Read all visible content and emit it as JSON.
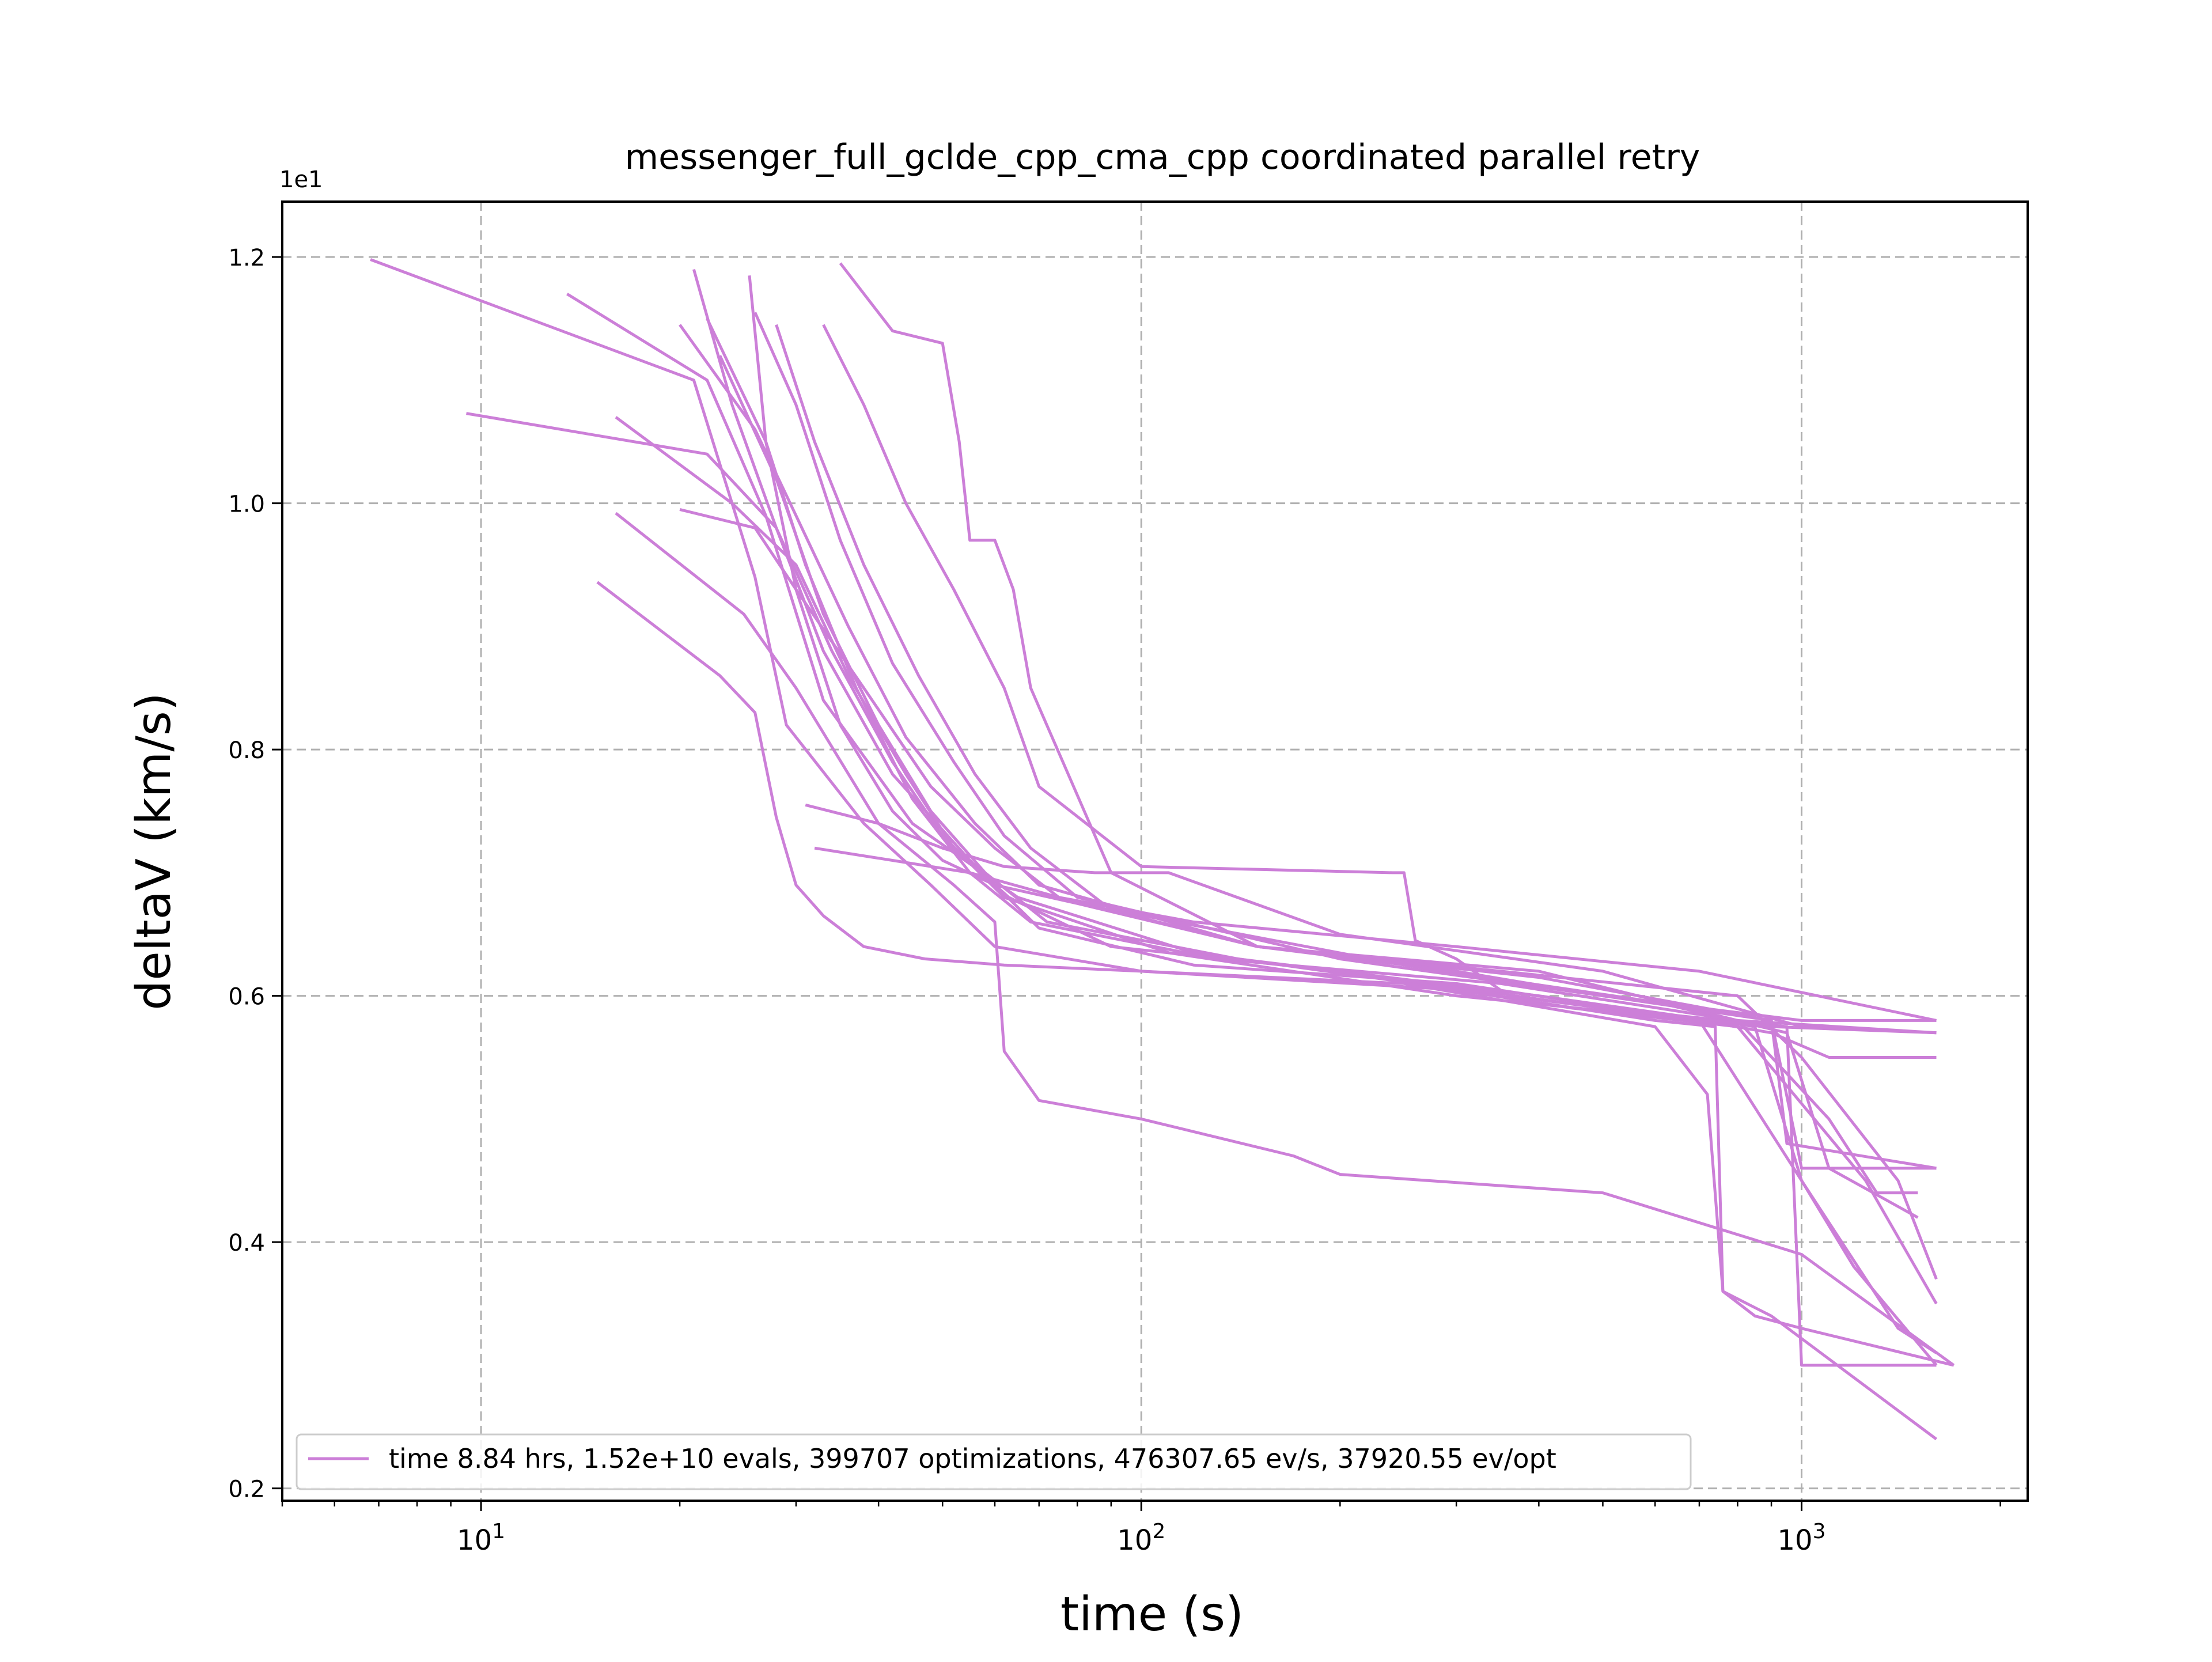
{
  "chart_data": {
    "type": "line",
    "title": "messenger_full_gclde_cpp_cma_cpp coordinated parallel retry",
    "xlabel": "time (s)",
    "ylabel": "deltaV (km/s)",
    "x_scale": "log",
    "xlim": [
      5,
      2200
    ],
    "ylim": [
      0.19,
      1.245
    ],
    "y_offset_text": "1e1",
    "x_ticks": [
      {
        "value": 10,
        "base": "10",
        "exp": "1"
      },
      {
        "value": 100,
        "base": "10",
        "exp": "2"
      },
      {
        "value": 1000,
        "base": "10",
        "exp": "3"
      }
    ],
    "y_ticks": [
      {
        "value": 0.2,
        "label": "0.2"
      },
      {
        "value": 0.4,
        "label": "0.4"
      },
      {
        "value": 0.6,
        "label": "0.6"
      },
      {
        "value": 0.8,
        "label": "0.8"
      },
      {
        "value": 1.0,
        "label": "1.0"
      },
      {
        "value": 1.2,
        "label": "1.2"
      }
    ],
    "grid": true,
    "legend": {
      "position": "bottom-left",
      "entry": "time 8.84 hrs, 1.52e+10 evals, 399707 optimizations, 476307.65 ev/s, 37920.55 ev/opt"
    },
    "color": "#cc7fd8",
    "series": [
      {
        "x": [
          6.8,
          21,
          26,
          29,
          38,
          48,
          60,
          100,
          250,
          600,
          720,
          760,
          850,
          1000,
          1700
        ],
        "y": [
          1.198,
          1.1,
          0.94,
          0.82,
          0.74,
          0.69,
          0.64,
          0.62,
          0.61,
          0.575,
          0.52,
          0.36,
          0.34,
          0.33,
          0.3
        ]
      },
      {
        "x": [
          9.5,
          22,
          28,
          33,
          42,
          55,
          70,
          120,
          300,
          700,
          1000,
          1400,
          1600
        ],
        "y": [
          1.073,
          1.04,
          0.98,
          0.88,
          0.78,
          0.71,
          0.655,
          0.625,
          0.61,
          0.58,
          0.45,
          0.33,
          0.31
        ]
      },
      {
        "x": [
          13.5,
          22,
          27,
          33,
          45,
          65,
          120,
          260,
          450,
          800,
          1250,
          1600
        ],
        "y": [
          1.17,
          1.1,
          0.99,
          0.84,
          0.74,
          0.68,
          0.635,
          0.61,
          0.59,
          0.575,
          0.45,
          0.35
        ]
      },
      {
        "x": [
          15,
          23,
          26,
          28,
          30,
          33,
          38,
          47,
          62,
          100,
          300,
          600,
          740,
          760,
          900,
          1600
        ],
        "y": [
          0.936,
          0.86,
          0.83,
          0.745,
          0.69,
          0.665,
          0.64,
          0.63,
          0.625,
          0.62,
          0.605,
          0.58,
          0.575,
          0.36,
          0.34,
          0.24
        ]
      },
      {
        "x": [
          16,
          24,
          30,
          36,
          44,
          52,
          63,
          90,
          200,
          500,
          950,
          1000,
          1600
        ],
        "y": [
          1.07,
          1.0,
          0.95,
          0.86,
          0.78,
          0.72,
          0.68,
          0.64,
          0.62,
          0.59,
          0.575,
          0.3,
          0.3
        ]
      },
      {
        "x": [
          16,
          25,
          30,
          40,
          52,
          60,
          62,
          70,
          100,
          170,
          200,
          500,
          1000,
          1700
        ],
        "y": [
          0.992,
          0.91,
          0.85,
          0.74,
          0.69,
          0.66,
          0.555,
          0.515,
          0.5,
          0.47,
          0.455,
          0.44,
          0.39,
          0.3
        ]
      },
      {
        "x": [
          20,
          26,
          30,
          36,
          44,
          56,
          70,
          150,
          350,
          800,
          1000,
          1400,
          1600
        ],
        "y": [
          1.145,
          1.06,
          0.99,
          0.9,
          0.81,
          0.74,
          0.69,
          0.64,
          0.62,
          0.6,
          0.55,
          0.45,
          0.37
        ]
      },
      {
        "x": [
          20,
          26,
          30,
          38,
          48,
          60,
          75,
          150,
          400,
          900,
          950,
          1600
        ],
        "y": [
          0.995,
          0.98,
          0.93,
          0.85,
          0.77,
          0.72,
          0.68,
          0.64,
          0.615,
          0.58,
          0.48,
          0.46
        ]
      },
      {
        "x": [
          21,
          24,
          28,
          34,
          42,
          50,
          62,
          110,
          300,
          700,
          900,
          1100,
          1600
        ],
        "y": [
          1.19,
          1.08,
          0.98,
          0.88,
          0.79,
          0.73,
          0.68,
          0.635,
          0.6,
          0.58,
          0.57,
          0.55,
          0.55
        ]
      },
      {
        "x": [
          22,
          27,
          31,
          37,
          45,
          55,
          68,
          130,
          350,
          800,
          1100,
          1300,
          1500
        ],
        "y": [
          1.15,
          1.05,
          0.95,
          0.85,
          0.76,
          0.7,
          0.66,
          0.63,
          0.61,
          0.58,
          0.5,
          0.44,
          0.44
        ]
      },
      {
        "x": [
          23,
          28,
          33,
          40,
          48,
          58,
          72,
          140,
          400,
          850,
          1000,
          1200,
          1600
        ],
        "y": [
          1.12,
          1.02,
          0.91,
          0.82,
          0.75,
          0.7,
          0.66,
          0.63,
          0.6,
          0.575,
          0.45,
          0.38,
          0.3
        ]
      },
      {
        "x": [
          25.5,
          27,
          30,
          35,
          42,
          50,
          60,
          80,
          150,
          300,
          500,
          1000,
          1600
        ],
        "y": [
          1.185,
          1.05,
          0.93,
          0.82,
          0.75,
          0.71,
          0.69,
          0.675,
          0.64,
          0.62,
          0.6,
          0.58,
          0.58
        ]
      },
      {
        "x": [
          26,
          30,
          35,
          42,
          52,
          62,
          80,
          200,
          500,
          900,
          1000,
          1600
        ],
        "y": [
          1.155,
          1.08,
          0.97,
          0.87,
          0.79,
          0.73,
          0.68,
          0.63,
          0.6,
          0.58,
          0.46,
          0.46
        ]
      },
      {
        "x": [
          28,
          32,
          38,
          46,
          56,
          68,
          90,
          250,
          600,
          950,
          1100,
          1500
        ],
        "y": [
          1.145,
          1.05,
          0.95,
          0.86,
          0.78,
          0.72,
          0.67,
          0.625,
          0.595,
          0.57,
          0.46,
          0.42
        ]
      },
      {
        "x": [
          33,
          38,
          44,
          52,
          62,
          70,
          100,
          240,
          250,
          260,
          300,
          360,
          500,
          900,
          1600
        ],
        "y": [
          1.145,
          1.08,
          1.0,
          0.93,
          0.85,
          0.77,
          0.705,
          0.7,
          0.7,
          0.645,
          0.63,
          0.6,
          0.59,
          0.575,
          0.57
        ]
      },
      {
        "x": [
          35,
          42,
          50,
          53,
          55,
          60,
          64,
          68,
          90,
          150,
          400,
          800,
          1600
        ],
        "y": [
          1.195,
          1.14,
          1.13,
          1.05,
          0.97,
          0.97,
          0.93,
          0.85,
          0.7,
          0.64,
          0.62,
          0.58,
          0.57
        ]
      },
      {
        "x": [
          31,
          40,
          50,
          62,
          85,
          110,
          200,
          500,
          1000,
          1600
        ],
        "y": [
          0.755,
          0.74,
          0.72,
          0.705,
          0.7,
          0.7,
          0.65,
          0.62,
          0.575,
          0.57
        ]
      },
      {
        "x": [
          32,
          42,
          55,
          75,
          120,
          300,
          700,
          1600
        ],
        "y": [
          0.72,
          0.71,
          0.7,
          0.68,
          0.66,
          0.64,
          0.62,
          0.58
        ]
      }
    ]
  }
}
